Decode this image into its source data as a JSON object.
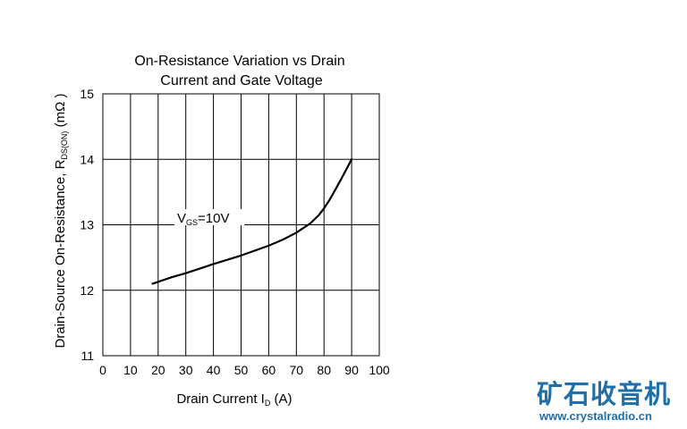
{
  "chart_data": {
    "type": "line",
    "title_line1": "On-Resistance Variation vs Drain",
    "title_line2": "Current and Gate Voltage",
    "xlabel_main": "Drain Current I",
    "xlabel_sub": "D",
    "xlabel_unit": " (A)",
    "ylabel_main": "Drain-Source On-Resistance, R",
    "ylabel_sub": "DS(ON)",
    "ylabel_unit": " (mΩ )",
    "xlim": [
      0,
      100
    ],
    "ylim": [
      11,
      15
    ],
    "x_ticks": [
      0,
      10,
      20,
      30,
      40,
      50,
      60,
      70,
      80,
      90,
      100
    ],
    "y_ticks": [
      11,
      12,
      13,
      14,
      15
    ],
    "grid": true,
    "series": [
      {
        "annotation_main": "V",
        "annotation_sub": "GS",
        "annotation_value": "=10V",
        "x": [
          18,
          25,
          30,
          40,
          50,
          60,
          65,
          70,
          75,
          78,
          80,
          82,
          84,
          86,
          88,
          90
        ],
        "y": [
          12.1,
          12.2,
          12.26,
          12.4,
          12.53,
          12.68,
          12.77,
          12.88,
          13.02,
          13.14,
          13.25,
          13.38,
          13.53,
          13.68,
          13.84,
          14.0
        ]
      }
    ]
  },
  "watermark": {
    "chinese": "矿石收音机",
    "url": "www.crystalradio.cn",
    "color": "#1f6fa8"
  }
}
